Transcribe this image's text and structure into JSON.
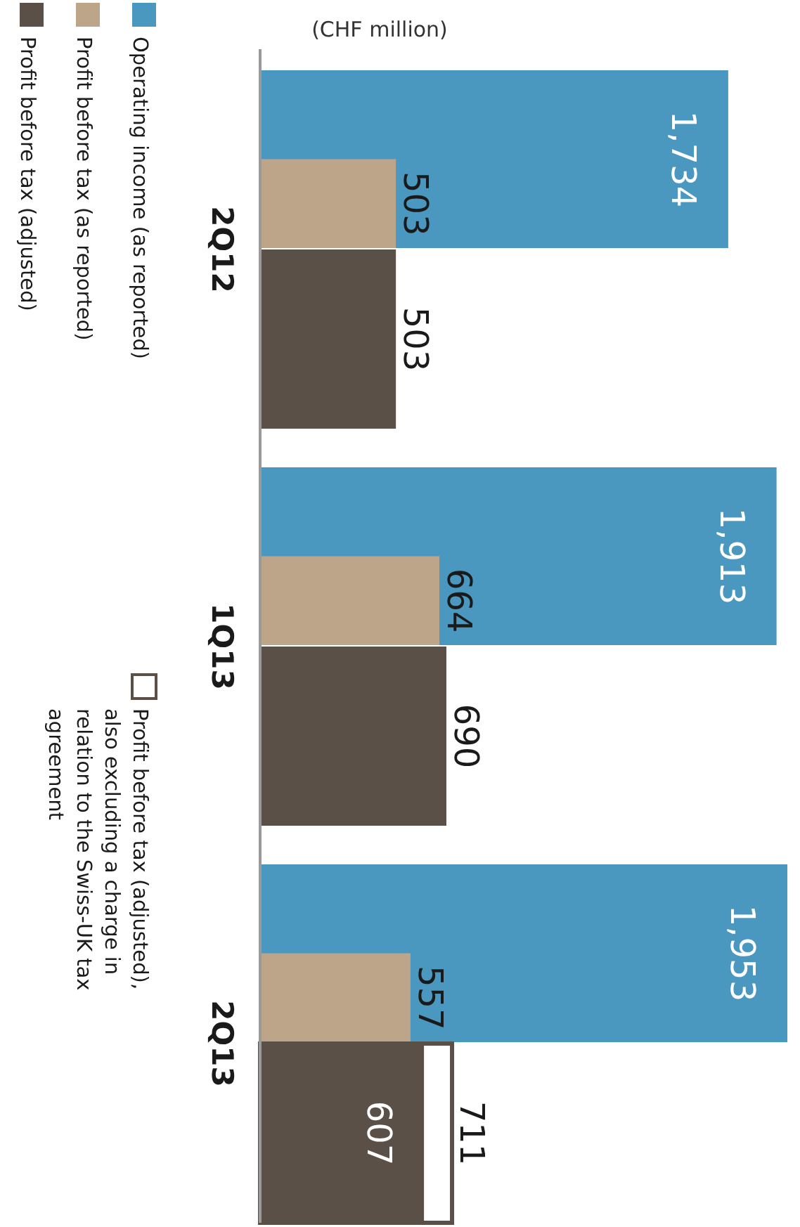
{
  "chart_data": {
    "type": "bar",
    "ylabel": "(CHF million)",
    "categories": [
      "2Q12",
      "1Q13",
      "2Q13"
    ],
    "series": [
      {
        "name": "Operating income (as reported)",
        "color": "#4a98c0",
        "values": [
          1734,
          1913,
          1953
        ],
        "value_labels": [
          "1,734",
          "1,913",
          "1,953"
        ]
      },
      {
        "name": "Profit before tax (as reported)",
        "color": "#bda58a",
        "values": [
          503,
          664,
          557
        ],
        "value_labels": [
          "503",
          "664",
          "557"
        ]
      },
      {
        "name": "Profit before tax (adjusted)",
        "color": "#5b5048",
        "values": [
          503,
          690,
          607
        ],
        "value_labels": [
          "503",
          "690",
          "607"
        ]
      },
      {
        "name": "Profit before tax (adjusted), also excluding a charge in relation to the Swiss-UK tax agreement",
        "color": "#ffffff",
        "values": [
          null,
          null,
          711
        ],
        "value_labels": [
          null,
          null,
          "711"
        ]
      }
    ],
    "orientation": "horizontal",
    "legend": "left"
  }
}
